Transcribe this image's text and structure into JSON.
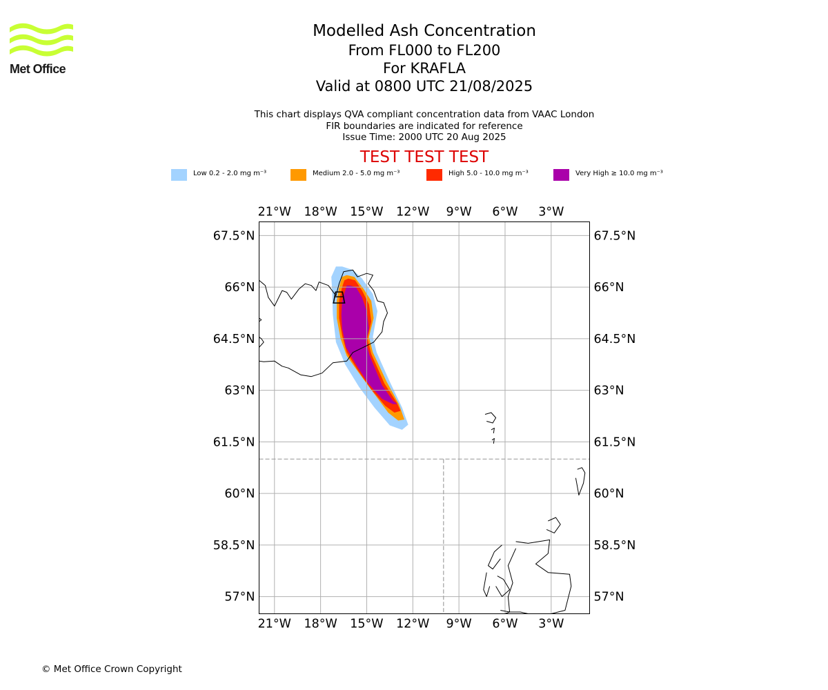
{
  "logo": {
    "text": "Met Office",
    "color": "#c8ff34"
  },
  "title": {
    "line1": "Modelled Ash Concentration",
    "line2": "From FL000 to FL200",
    "line3": "For KRAFLA",
    "line4": "Valid at 0800 UTC 21/08/2025"
  },
  "description": {
    "line1": "This chart displays QVA compliant concentration data from VAAC London",
    "line2": "FIR boundaries are indicated for reference",
    "line3": "Issue Time: 2000 UTC 20 Aug 2025"
  },
  "test_banner": "TEST TEST TEST",
  "legend": [
    {
      "label": "Low 0.2 - 2.0 mg m⁻³",
      "color": "#a3d3ff"
    },
    {
      "label": "Medium 2.0 - 5.0 mg m⁻³",
      "color": "#ff9900"
    },
    {
      "label": "High 5.0 - 10.0 mg m⁻³",
      "color": "#ff2a00"
    },
    {
      "label": "Very High ≥ 10.0 mg m⁻³",
      "color": "#aa00aa"
    }
  ],
  "map": {
    "extent": {
      "lon": [
        -22,
        -0.5
      ],
      "lat": [
        56.5,
        67.9
      ]
    },
    "lon_ticks": [
      {
        "value": -21,
        "label": "21°W"
      },
      {
        "value": -18,
        "label": "18°W"
      },
      {
        "value": -15,
        "label": "15°W"
      },
      {
        "value": -12,
        "label": "12°W"
      },
      {
        "value": -9,
        "label": "9°W"
      },
      {
        "value": -6,
        "label": "6°W"
      },
      {
        "value": -3,
        "label": "3°W"
      }
    ],
    "lat_ticks": [
      {
        "value": 67.5,
        "label": "67.5°N"
      },
      {
        "value": 66,
        "label": "66°N"
      },
      {
        "value": 64.5,
        "label": "64.5°N"
      },
      {
        "value": 63,
        "label": "63°N"
      },
      {
        "value": 61.5,
        "label": "61.5°N"
      },
      {
        "value": 60,
        "label": "60°N"
      },
      {
        "value": 58.5,
        "label": "58.5°N"
      },
      {
        "value": 57,
        "label": "57°N"
      }
    ],
    "volcano": {
      "name": "KRAFLA",
      "lon": -16.8,
      "lat": 65.72
    },
    "ash_regions": [
      {
        "level": "Low",
        "color": "#a3d3ff",
        "lonlat": [
          [
            -16.6,
            66.6
          ],
          [
            -15.9,
            66.5
          ],
          [
            -15.3,
            66.25
          ],
          [
            -14.6,
            65.8
          ],
          [
            -14.3,
            65.3
          ],
          [
            -14.6,
            64.55
          ],
          [
            -14.35,
            64.1
          ],
          [
            -13.55,
            63.3
          ],
          [
            -12.7,
            62.5
          ],
          [
            -12.3,
            62.0
          ],
          [
            -12.7,
            61.85
          ],
          [
            -13.5,
            61.98
          ],
          [
            -14.5,
            62.5
          ],
          [
            -15.5,
            63.1
          ],
          [
            -16.4,
            63.75
          ],
          [
            -17.0,
            64.4
          ],
          [
            -17.2,
            65.2
          ],
          [
            -17.25,
            65.9
          ],
          [
            -17.3,
            66.3
          ],
          [
            -17.0,
            66.6
          ]
        ]
      },
      {
        "level": "Medium",
        "color": "#ff9900",
        "lonlat": [
          [
            -16.3,
            66.35
          ],
          [
            -15.8,
            66.3
          ],
          [
            -15.2,
            65.95
          ],
          [
            -14.7,
            65.6
          ],
          [
            -14.55,
            65.1
          ],
          [
            -14.85,
            64.55
          ],
          [
            -14.6,
            64.1
          ],
          [
            -13.7,
            63.25
          ],
          [
            -12.9,
            62.6
          ],
          [
            -12.55,
            62.15
          ],
          [
            -12.95,
            62.12
          ],
          [
            -13.6,
            62.35
          ],
          [
            -14.6,
            62.95
          ],
          [
            -15.5,
            63.5
          ],
          [
            -16.3,
            64.0
          ],
          [
            -16.7,
            64.5
          ],
          [
            -16.95,
            65.1
          ],
          [
            -16.95,
            65.6
          ],
          [
            -16.8,
            66.0
          ],
          [
            -16.6,
            66.3
          ]
        ]
      },
      {
        "level": "High",
        "color": "#ff2a00",
        "lonlat": [
          [
            -16.2,
            66.25
          ],
          [
            -15.75,
            66.2
          ],
          [
            -15.3,
            65.9
          ],
          [
            -14.85,
            65.5
          ],
          [
            -14.7,
            65.0
          ],
          [
            -14.95,
            64.5
          ],
          [
            -14.7,
            64.05
          ],
          [
            -13.85,
            63.2
          ],
          [
            -13.05,
            62.65
          ],
          [
            -12.8,
            62.4
          ],
          [
            -13.2,
            62.35
          ],
          [
            -13.8,
            62.55
          ],
          [
            -14.75,
            63.05
          ],
          [
            -15.6,
            63.6
          ],
          [
            -16.3,
            64.1
          ],
          [
            -16.6,
            64.6
          ],
          [
            -16.8,
            65.1
          ],
          [
            -16.8,
            65.6
          ],
          [
            -16.6,
            66.0
          ],
          [
            -16.45,
            66.2
          ]
        ]
      },
      {
        "level": "Very High",
        "color": "#aa00aa",
        "lonlat": [
          [
            -16.1,
            66.05
          ],
          [
            -15.7,
            66.0
          ],
          [
            -15.3,
            65.7
          ],
          [
            -15.0,
            65.3
          ],
          [
            -14.85,
            64.8
          ],
          [
            -15.05,
            64.4
          ],
          [
            -14.8,
            64.0
          ],
          [
            -14.0,
            63.15
          ],
          [
            -13.3,
            62.7
          ],
          [
            -13.0,
            62.6
          ],
          [
            -13.3,
            62.6
          ],
          [
            -14.0,
            62.75
          ],
          [
            -14.9,
            63.2
          ],
          [
            -15.7,
            63.75
          ],
          [
            -16.35,
            64.25
          ],
          [
            -16.6,
            64.8
          ],
          [
            -16.65,
            65.2
          ],
          [
            -16.6,
            65.6
          ],
          [
            -16.4,
            65.9
          ],
          [
            -16.3,
            66.05
          ]
        ]
      }
    ],
    "coastlines": [
      {
        "name": "iceland-north-coast",
        "lonlat": [
          [
            -22,
            66.2
          ],
          [
            -21.6,
            66.05
          ],
          [
            -21.4,
            65.7
          ],
          [
            -21.0,
            65.45
          ],
          [
            -20.5,
            65.9
          ],
          [
            -20.2,
            65.85
          ],
          [
            -19.9,
            65.65
          ],
          [
            -19.4,
            65.95
          ],
          [
            -19.0,
            66.1
          ],
          [
            -18.6,
            66.05
          ],
          [
            -18.3,
            65.9
          ],
          [
            -18.1,
            66.15
          ],
          [
            -17.5,
            66.05
          ],
          [
            -17.0,
            65.75
          ],
          [
            -16.8,
            66.1
          ],
          [
            -16.5,
            66.45
          ],
          [
            -15.9,
            66.5
          ],
          [
            -15.6,
            66.3
          ],
          [
            -15.0,
            66.4
          ],
          [
            -14.6,
            66.35
          ],
          [
            -14.9,
            66.1
          ],
          [
            -14.55,
            65.9
          ],
          [
            -14.3,
            65.6
          ],
          [
            -13.9,
            65.55
          ],
          [
            -13.65,
            65.25
          ],
          [
            -13.9,
            65.0
          ],
          [
            -14.0,
            64.7
          ],
          [
            -14.55,
            64.4
          ],
          [
            -15.0,
            64.3
          ],
          [
            -15.9,
            64.1
          ],
          [
            -16.3,
            63.85
          ],
          [
            -17.2,
            63.8
          ],
          [
            -17.9,
            63.5
          ],
          [
            -18.6,
            63.4
          ],
          [
            -19.3,
            63.45
          ],
          [
            -20.1,
            63.65
          ],
          [
            -20.5,
            63.7
          ],
          [
            -21.0,
            63.85
          ],
          [
            -21.7,
            63.83
          ],
          [
            -22,
            63.85
          ]
        ]
      },
      {
        "name": "iceland-west-coast",
        "lonlat": [
          [
            -22,
            64.25
          ],
          [
            -21.7,
            64.4
          ],
          [
            -21.85,
            64.5
          ],
          [
            -22,
            64.55
          ]
        ]
      },
      {
        "name": "iceland-westfjords-stub",
        "lonlat": [
          [
            -22,
            65.0
          ],
          [
            -21.85,
            65.05
          ],
          [
            -22,
            65.1
          ]
        ]
      },
      {
        "name": "faroe-island-1",
        "lonlat": [
          [
            -7.3,
            62.3
          ],
          [
            -6.9,
            62.35
          ],
          [
            -6.6,
            62.2
          ],
          [
            -6.8,
            62.05
          ],
          [
            -7.2,
            62.1
          ]
        ]
      },
      {
        "name": "faroe-island-2",
        "lonlat": [
          [
            -6.9,
            61.85
          ],
          [
            -6.7,
            61.9
          ],
          [
            -6.75,
            61.75
          ]
        ]
      },
      {
        "name": "faroe-island-3",
        "lonlat": [
          [
            -6.85,
            61.55
          ],
          [
            -6.7,
            61.6
          ],
          [
            -6.75,
            61.45
          ]
        ]
      },
      {
        "name": "shetland",
        "lonlat": [
          [
            -1.3,
            60.7
          ],
          [
            -1.0,
            60.75
          ],
          [
            -0.8,
            60.6
          ],
          [
            -0.9,
            60.3
          ],
          [
            -1.2,
            59.95
          ],
          [
            -1.3,
            60.2
          ],
          [
            -1.4,
            60.45
          ]
        ]
      },
      {
        "name": "orkney",
        "lonlat": [
          [
            -3.2,
            59.2
          ],
          [
            -2.7,
            59.3
          ],
          [
            -2.4,
            59.1
          ],
          [
            -2.8,
            58.85
          ],
          [
            -3.3,
            58.95
          ]
        ]
      },
      {
        "name": "scotland-mainland",
        "lonlat": [
          [
            -5.3,
            58.6
          ],
          [
            -4.5,
            58.55
          ],
          [
            -3.1,
            58.65
          ],
          [
            -3.2,
            58.25
          ],
          [
            -4.0,
            57.95
          ],
          [
            -3.2,
            57.7
          ],
          [
            -1.8,
            57.65
          ],
          [
            -1.7,
            57.3
          ],
          [
            -2.1,
            56.6
          ],
          [
            -3.0,
            56.5
          ],
          [
            -3.7,
            56.5
          ],
          [
            -4.5,
            56.5
          ],
          [
            -5.0,
            56.55
          ],
          [
            -5.7,
            56.55
          ],
          [
            -5.8,
            57.0
          ],
          [
            -5.5,
            57.4
          ],
          [
            -5.8,
            57.9
          ],
          [
            -5.3,
            58.4
          ]
        ]
      },
      {
        "name": "lewis",
        "lonlat": [
          [
            -6.2,
            58.5
          ],
          [
            -6.7,
            58.3
          ],
          [
            -7.1,
            57.9
          ],
          [
            -6.8,
            57.8
          ],
          [
            -6.3,
            58.1
          ]
        ]
      },
      {
        "name": "uist",
        "lonlat": [
          [
            -7.2,
            57.7
          ],
          [
            -7.4,
            57.2
          ],
          [
            -7.2,
            57.0
          ],
          [
            -7.0,
            57.3
          ]
        ]
      },
      {
        "name": "skye",
        "lonlat": [
          [
            -6.5,
            57.6
          ],
          [
            -6.1,
            57.5
          ],
          [
            -5.7,
            57.2
          ],
          [
            -6.2,
            57.0
          ],
          [
            -6.6,
            57.3
          ]
        ]
      },
      {
        "name": "mull",
        "lonlat": [
          [
            -6.3,
            56.6
          ],
          [
            -5.7,
            56.55
          ],
          [
            -6.0,
            56.5
          ]
        ]
      }
    ],
    "fir_boundaries": [
      {
        "name": "fir-boundary-61n",
        "lonlat": [
          [
            -22,
            61.0
          ],
          [
            -0.5,
            61.0
          ]
        ]
      },
      {
        "name": "fir-boundary-10w",
        "lonlat": [
          [
            -10,
            61.0
          ],
          [
            -10,
            56.5
          ]
        ]
      }
    ]
  },
  "copyright": "© Met Office Crown Copyright"
}
